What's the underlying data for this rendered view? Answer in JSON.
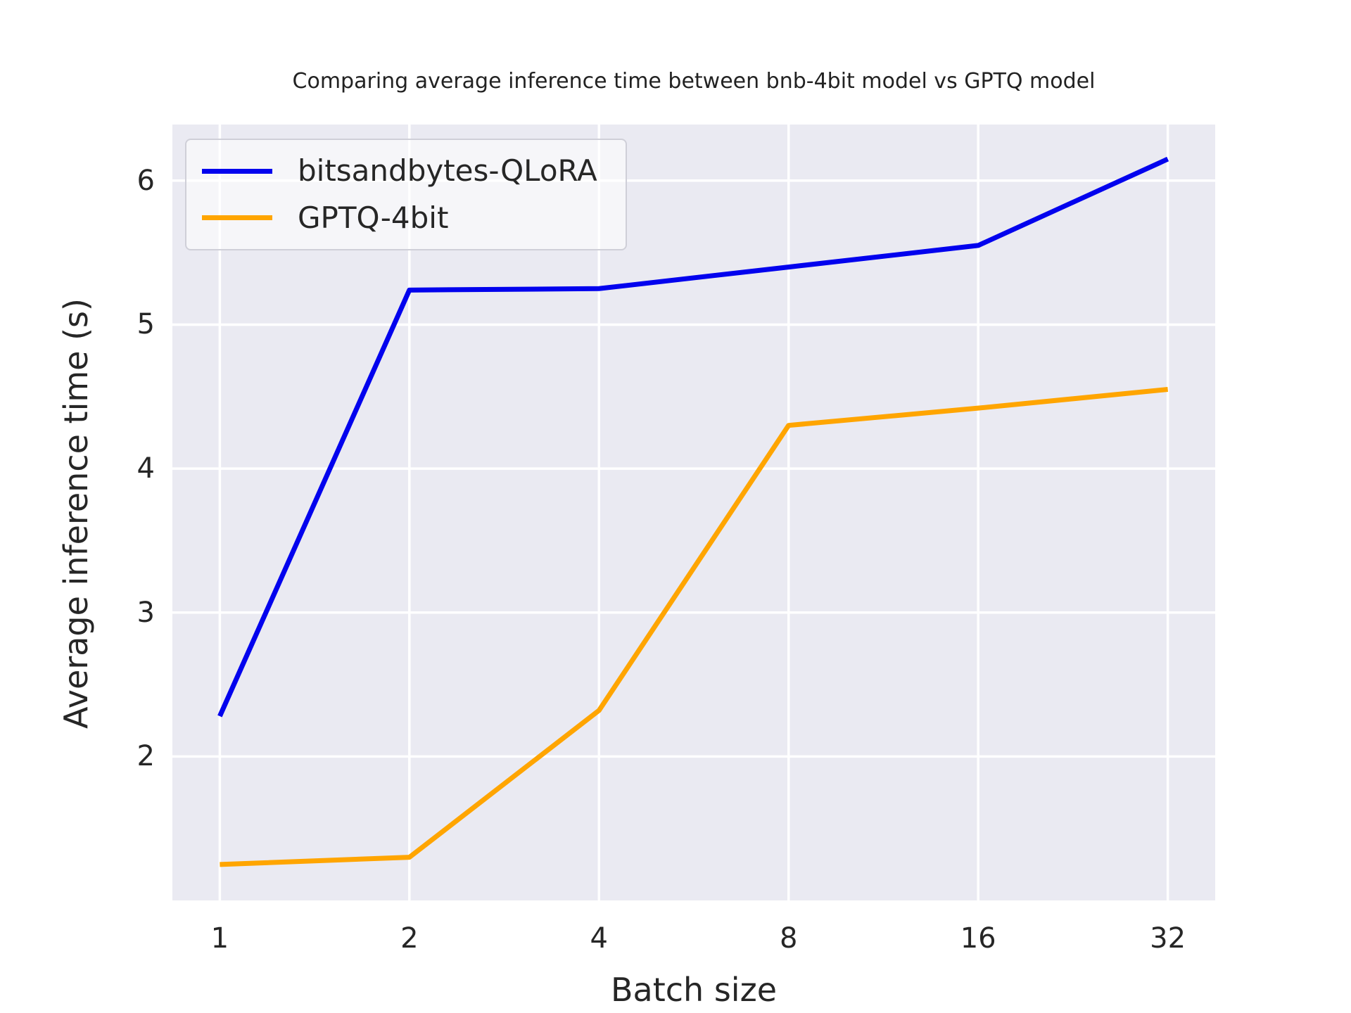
{
  "chart_data": {
    "type": "line",
    "title": "Comparing average inference time between bnb-4bit model vs GPTQ model",
    "xlabel": "Batch size",
    "ylabel": "Average inference time (s)",
    "categories": [
      "1",
      "2",
      "4",
      "8",
      "16",
      "32"
    ],
    "series": [
      {
        "name": "bitsandbytes-QLoRA",
        "color": "#0202ee",
        "values": [
          2.28,
          5.24,
          5.25,
          5.4,
          5.55,
          6.15
        ]
      },
      {
        "name": "GPTQ-4bit",
        "color": "#ffa500",
        "values": [
          1.25,
          1.3,
          2.32,
          4.3,
          4.42,
          4.55
        ]
      }
    ],
    "yticks": [
      2,
      3,
      4,
      5,
      6
    ],
    "ylim": [
      1.0,
      6.39
    ],
    "grid": true,
    "legend_position": "upper left",
    "colors": {
      "plot_background": "#eaeaf2",
      "grid": "#ffffff",
      "text": "#262626",
      "figure_background": "#ffffff"
    }
  }
}
